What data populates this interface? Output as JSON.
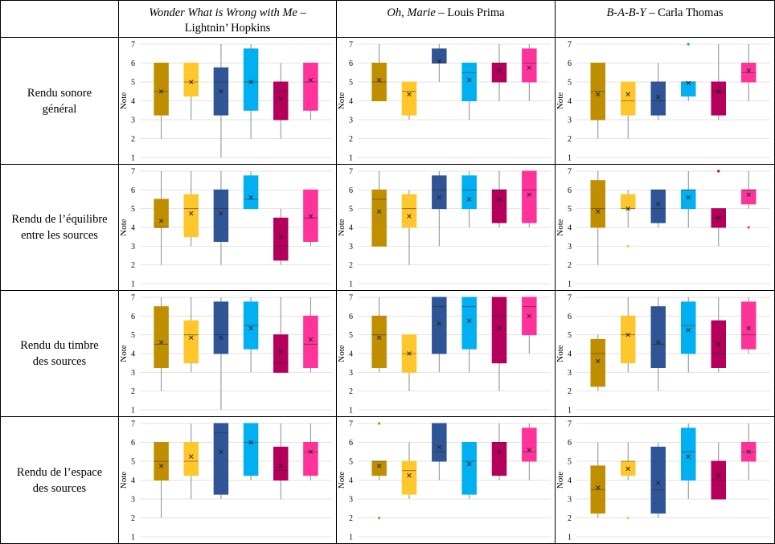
{
  "columns": [
    {
      "title": "Wonder What is Wrong with Me",
      "sep": " –",
      "artist": "Lightnin’ Hopkins"
    },
    {
      "title": "Oh, Marie",
      "sep": " – ",
      "artist": "Louis Prima"
    },
    {
      "title": "B-A-B-Y",
      "sep": " – ",
      "artist": "Carla Thomas"
    }
  ],
  "rows": [
    {
      "label_lines": [
        "Rendu sonore",
        "général"
      ]
    },
    {
      "label_lines": [
        "Rendu de l’équilibre",
        "entre les sources"
      ]
    },
    {
      "label_lines": [
        "Rendu du timbre",
        "des sources"
      ]
    },
    {
      "label_lines": [
        "Rendu de l’espace",
        "des sources"
      ]
    }
  ],
  "series_colors": [
    "#BF8F00",
    "#FFC72C",
    "#2F5597",
    "#00B0F0",
    "#B4005A",
    "#FF3399"
  ],
  "chart_data": {
    "type": "box",
    "ylabel": "Note",
    "ylim": [
      1,
      7
    ],
    "yticks": [
      1,
      2,
      3,
      4,
      5,
      6,
      7
    ],
    "grid": true,
    "panels": [
      {
        "row": 0,
        "col": 0,
        "boxes": [
          {
            "min": 2,
            "q1": 3.25,
            "median": 4.5,
            "q3": 6,
            "max": 6,
            "mean": 4.5,
            "outliers": []
          },
          {
            "min": 3,
            "q1": 4.25,
            "median": 5,
            "q3": 6,
            "max": 6,
            "mean": 5,
            "outliers": []
          },
          {
            "min": 1,
            "q1": 3.25,
            "median": 5,
            "q3": 5.75,
            "max": 7,
            "mean": 4.5,
            "outliers": []
          },
          {
            "min": 2,
            "q1": 3.5,
            "median": 5,
            "q3": 6.75,
            "max": 7,
            "mean": 5,
            "outliers": []
          },
          {
            "min": 2,
            "q1": 3,
            "median": 4.5,
            "q3": 5,
            "max": 6,
            "mean": 4.1,
            "outliers": []
          },
          {
            "min": 3,
            "q1": 3.5,
            "median": 5,
            "q3": 6,
            "max": 6,
            "mean": 5.1,
            "outliers": []
          }
        ]
      },
      {
        "row": 0,
        "col": 1,
        "boxes": [
          {
            "min": 4,
            "q1": 4,
            "median": 5,
            "q3": 6,
            "max": 7,
            "mean": 5.1,
            "outliers": []
          },
          {
            "min": 3,
            "q1": 3.25,
            "median": 4.5,
            "q3": 5,
            "max": 5,
            "mean": 4.35,
            "outliers": []
          },
          {
            "min": 5,
            "q1": 6,
            "median": 6,
            "q3": 6.75,
            "max": 7,
            "mean": 6.1,
            "outliers": []
          },
          {
            "min": 3,
            "q1": 4,
            "median": 5.5,
            "q3": 6,
            "max": 6,
            "mean": 5.1,
            "outliers": []
          },
          {
            "min": 4,
            "q1": 5,
            "median": 6,
            "q3": 6,
            "max": 7,
            "mean": 5.6,
            "outliers": []
          },
          {
            "min": 4,
            "q1": 5,
            "median": 6,
            "q3": 6.75,
            "max": 7,
            "mean": 5.75,
            "outliers": []
          }
        ]
      },
      {
        "row": 0,
        "col": 2,
        "boxes": [
          {
            "min": 2,
            "q1": 3,
            "median": 4.5,
            "q3": 6,
            "max": 6,
            "mean": 4.35,
            "outliers": []
          },
          {
            "min": 2,
            "q1": 3.25,
            "median": 4,
            "q3": 5,
            "max": 5,
            "mean": 4.35,
            "outliers": []
          },
          {
            "min": 3,
            "q1": 3.25,
            "median": 4,
            "q3": 5,
            "max": 6,
            "mean": 4.2,
            "outliers": []
          },
          {
            "min": 4,
            "q1": 4.25,
            "median": 5,
            "q3": 5,
            "max": 5,
            "mean": 4.95,
            "outliers": [
              7
            ]
          },
          {
            "min": 3,
            "q1": 3.25,
            "median": 4.5,
            "q3": 5,
            "max": 7,
            "mean": 4.5,
            "outliers": []
          },
          {
            "min": 4,
            "q1": 5,
            "median": 5.5,
            "q3": 6,
            "max": 7,
            "mean": 5.6,
            "outliers": []
          }
        ]
      },
      {
        "row": 1,
        "col": 0,
        "boxes": [
          {
            "min": 2,
            "q1": 4,
            "median": 4,
            "q3": 5.5,
            "max": 7,
            "mean": 4.35,
            "outliers": []
          },
          {
            "min": 3,
            "q1": 3.5,
            "median": 5,
            "q3": 5.75,
            "max": 7,
            "mean": 4.75,
            "outliers": []
          },
          {
            "min": 2,
            "q1": 3.25,
            "median": 5,
            "q3": 6,
            "max": 7,
            "mean": 4.75,
            "outliers": []
          },
          {
            "min": 5,
            "q1": 5,
            "median": 5.5,
            "q3": 6.75,
            "max": 7,
            "mean": 5.6,
            "outliers": []
          },
          {
            "min": 2,
            "q1": 2.25,
            "median": 3,
            "q3": 4.5,
            "max": 5,
            "mean": 3.5,
            "outliers": []
          },
          {
            "min": 3,
            "q1": 3.25,
            "median": 4.5,
            "q3": 6,
            "max": 6,
            "mean": 4.6,
            "outliers": []
          }
        ]
      },
      {
        "row": 1,
        "col": 1,
        "boxes": [
          {
            "min": 3,
            "q1": 3,
            "median": 5.5,
            "q3": 6,
            "max": 7,
            "mean": 4.85,
            "outliers": []
          },
          {
            "min": 2,
            "q1": 4,
            "median": 5,
            "q3": 5.75,
            "max": 6,
            "mean": 4.6,
            "outliers": []
          },
          {
            "min": 3,
            "q1": 5,
            "median": 6,
            "q3": 6.75,
            "max": 7,
            "mean": 5.6,
            "outliers": []
          },
          {
            "min": 4,
            "q1": 5,
            "median": 6,
            "q3": 6.75,
            "max": 7,
            "mean": 5.5,
            "outliers": []
          },
          {
            "min": 4,
            "q1": 4.25,
            "median": 6,
            "q3": 6,
            "max": 7,
            "mean": 5.5,
            "outliers": []
          },
          {
            "min": 4,
            "q1": 4.25,
            "median": 6,
            "q3": 7,
            "max": 7,
            "mean": 5.75,
            "outliers": []
          }
        ]
      },
      {
        "row": 1,
        "col": 2,
        "boxes": [
          {
            "min": 2,
            "q1": 4,
            "median": 5,
            "q3": 6.5,
            "max": 7,
            "mean": 4.85,
            "outliers": []
          },
          {
            "min": 4,
            "q1": 5,
            "median": 5,
            "q3": 5.75,
            "max": 6,
            "mean": 5,
            "outliers": [
              3
            ]
          },
          {
            "min": 4,
            "q1": 4.25,
            "median": 5,
            "q3": 6,
            "max": 6,
            "mean": 5.25,
            "outliers": []
          },
          {
            "min": 4,
            "q1": 5,
            "median": 6,
            "q3": 6,
            "max": 7,
            "mean": 5.6,
            "outliers": []
          },
          {
            "min": 3,
            "q1": 4,
            "median": 4.5,
            "q3": 5,
            "max": 5,
            "mean": 4.5,
            "outliers": [
              7
            ]
          },
          {
            "min": 5,
            "q1": 5.25,
            "median": 6,
            "q3": 6,
            "max": 7,
            "mean": 5.75,
            "outliers": [
              4
            ]
          }
        ]
      },
      {
        "row": 2,
        "col": 0,
        "boxes": [
          {
            "min": 2,
            "q1": 3.25,
            "median": 4.5,
            "q3": 6.5,
            "max": 7,
            "mean": 4.6,
            "outliers": []
          },
          {
            "min": 3,
            "q1": 3.5,
            "median": 5,
            "q3": 5.75,
            "max": 7,
            "mean": 4.85,
            "outliers": []
          },
          {
            "min": 1,
            "q1": 4,
            "median": 5,
            "q3": 6.75,
            "max": 7,
            "mean": 4.85,
            "outliers": []
          },
          {
            "min": 3,
            "q1": 4.25,
            "median": 5.5,
            "q3": 6.75,
            "max": 7,
            "mean": 5.35,
            "outliers": []
          },
          {
            "min": 3,
            "q1": 3,
            "median": 3.5,
            "q3": 5,
            "max": 7,
            "mean": 4.1,
            "outliers": []
          },
          {
            "min": 3,
            "q1": 3.25,
            "median": 4.5,
            "q3": 6,
            "max": 7,
            "mean": 4.75,
            "outliers": []
          }
        ]
      },
      {
        "row": 2,
        "col": 1,
        "boxes": [
          {
            "min": 3,
            "q1": 3.25,
            "median": 5,
            "q3": 6,
            "max": 7,
            "mean": 4.85,
            "outliers": []
          },
          {
            "min": 2,
            "q1": 3,
            "median": 4,
            "q3": 5,
            "max": 5,
            "mean": 4,
            "outliers": []
          },
          {
            "min": 3,
            "q1": 4,
            "median": 6.5,
            "q3": 7,
            "max": 7,
            "mean": 5.6,
            "outliers": []
          },
          {
            "min": 3,
            "q1": 4.25,
            "median": 6.5,
            "q3": 7,
            "max": 7,
            "mean": 5.75,
            "outliers": []
          },
          {
            "min": 2,
            "q1": 3.5,
            "median": 6,
            "q3": 7,
            "max": 7,
            "mean": 5.35,
            "outliers": []
          },
          {
            "min": 4,
            "q1": 5,
            "median": 6.5,
            "q3": 7,
            "max": 7,
            "mean": 6,
            "outliers": []
          }
        ]
      },
      {
        "row": 2,
        "col": 2,
        "boxes": [
          {
            "min": 2,
            "q1": 2.25,
            "median": 4,
            "q3": 4.75,
            "max": 5,
            "mean": 3.6,
            "outliers": []
          },
          {
            "min": 3,
            "q1": 3.5,
            "median": 5,
            "q3": 6,
            "max": 7,
            "mean": 5,
            "outliers": []
          },
          {
            "min": 2,
            "q1": 3.25,
            "median": 4.5,
            "q3": 6.5,
            "max": 7,
            "mean": 4.6,
            "outliers": []
          },
          {
            "min": 3,
            "q1": 4,
            "median": 5.5,
            "q3": 6.75,
            "max": 7,
            "mean": 5.25,
            "outliers": []
          },
          {
            "min": 3,
            "q1": 3.25,
            "median": 4,
            "q3": 5.75,
            "max": 7,
            "mean": 4.5,
            "outliers": []
          },
          {
            "min": 4,
            "q1": 4.25,
            "median": 5,
            "q3": 6.75,
            "max": 7,
            "mean": 5.35,
            "outliers": []
          }
        ]
      },
      {
        "row": 3,
        "col": 0,
        "boxes": [
          {
            "min": 2,
            "q1": 4,
            "median": 5,
            "q3": 6,
            "max": 6,
            "mean": 4.75,
            "outliers": []
          },
          {
            "min": 3,
            "q1": 4.25,
            "median": 5,
            "q3": 6,
            "max": 7,
            "mean": 5.25,
            "outliers": []
          },
          {
            "min": 3,
            "q1": 3.25,
            "median": 6.5,
            "q3": 7,
            "max": 7,
            "mean": 5.5,
            "outliers": []
          },
          {
            "min": 4,
            "q1": 4.25,
            "median": 6,
            "q3": 7,
            "max": 7,
            "mean": 6,
            "outliers": []
          },
          {
            "min": 3,
            "q1": 4,
            "median": 4.5,
            "q3": 5.75,
            "max": 7,
            "mean": 4.75,
            "outliers": []
          },
          {
            "min": 4,
            "q1": 4.25,
            "median": 5.5,
            "q3": 6,
            "max": 7,
            "mean": 5.5,
            "outliers": []
          }
        ]
      },
      {
        "row": 3,
        "col": 1,
        "boxes": [
          {
            "min": 4,
            "q1": 4.25,
            "median": 5,
            "q3": 5,
            "max": 5,
            "mean": 4.75,
            "outliers": [
              7,
              2
            ]
          },
          {
            "min": 3,
            "q1": 3.25,
            "median": 4.5,
            "q3": 5,
            "max": 6,
            "mean": 4.25,
            "outliers": []
          },
          {
            "min": 4,
            "q1": 5,
            "median": 5.5,
            "q3": 7,
            "max": 7,
            "mean": 5.75,
            "outliers": []
          },
          {
            "min": 3,
            "q1": 3.25,
            "median": 5,
            "q3": 6,
            "max": 6,
            "mean": 4.85,
            "outliers": []
          },
          {
            "min": 4,
            "q1": 4.25,
            "median": 6,
            "q3": 6,
            "max": 7,
            "mean": 5.5,
            "outliers": []
          },
          {
            "min": 4,
            "q1": 5,
            "median": 5.5,
            "q3": 6.75,
            "max": 7,
            "mean": 5.6,
            "outliers": []
          }
        ]
      },
      {
        "row": 3,
        "col": 2,
        "boxes": [
          {
            "min": 2,
            "q1": 2.25,
            "median": 3.5,
            "q3": 4.75,
            "max": 6,
            "mean": 3.6,
            "outliers": []
          },
          {
            "min": 4,
            "q1": 4.25,
            "median": 5,
            "q3": 5,
            "max": 6,
            "mean": 4.6,
            "outliers": [
              2
            ]
          },
          {
            "min": 2,
            "q1": 2.25,
            "median": 3.5,
            "q3": 5.75,
            "max": 6,
            "mean": 3.85,
            "outliers": []
          },
          {
            "min": 3,
            "q1": 4,
            "median": 5.5,
            "q3": 6.75,
            "max": 7,
            "mean": 5.25,
            "outliers": []
          },
          {
            "min": 3,
            "q1": 3,
            "median": 4,
            "q3": 5,
            "max": 6,
            "mean": 4.25,
            "outliers": []
          },
          {
            "min": 4,
            "q1": 5,
            "median": 5.5,
            "q3": 6,
            "max": 7,
            "mean": 5.5,
            "outliers": []
          }
        ]
      }
    ]
  }
}
